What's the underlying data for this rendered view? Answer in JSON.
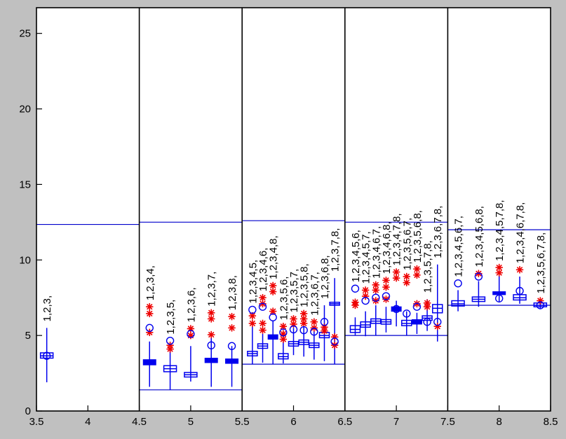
{
  "figure": {
    "background_color": "#c0c0c0",
    "plot_background_color": "#ffffff",
    "axis_color": "#000000",
    "box_color": "#0000ee",
    "bound_line_color": "#0000cc",
    "asterisk_color": "#ee0000",
    "label_color": "#000000"
  },
  "chart_data": {
    "type": "boxplot",
    "title": "",
    "xlabel": "",
    "ylabel": "",
    "xlim": [
      3.5,
      8.5
    ],
    "ylim": [
      0,
      26.7
    ],
    "grid": false,
    "legend": null,
    "xticks": [
      3.5,
      4,
      4.5,
      5,
      5.5,
      6,
      6.5,
      7,
      7.5,
      8,
      8.5
    ],
    "x_tick_labels": [
      "3.5",
      "4",
      "4.5",
      "5",
      "5.5",
      "6",
      "6.5",
      "7",
      "7.5",
      "8",
      "8.5"
    ],
    "yticks": [
      0,
      5,
      10,
      15,
      20,
      25
    ],
    "y_tick_labels": [
      "0",
      "5",
      "10",
      "15",
      "20",
      "25"
    ],
    "section_dividers": [
      4.5,
      5.5,
      6.5,
      7.5
    ],
    "sections": [
      {
        "x_range": [
          3.5,
          4.5
        ],
        "upper_line": 12.35,
        "lower_line": null
      },
      {
        "x_range": [
          4.5,
          5.5
        ],
        "upper_line": 12.5,
        "lower_line": 1.4
      },
      {
        "x_range": [
          5.5,
          6.5
        ],
        "upper_line": 12.6,
        "lower_line": 3.1
      },
      {
        "x_range": [
          6.5,
          7.5
        ],
        "upper_line": 12.5,
        "lower_line": 5.0
      },
      {
        "x_range": [
          7.5,
          8.5
        ],
        "upper_line": 12.0,
        "lower_line": 7.0
      }
    ],
    "boxes": [
      {
        "x": 3.6,
        "label": "1,2,3,",
        "wl": 1.9,
        "q1": 3.5,
        "med": 3.65,
        "q3": 3.85,
        "wh": 5.5,
        "filled": false,
        "circle": 3.65,
        "ast": []
      },
      {
        "x": 4.6,
        "label": "1,2,3,4,",
        "wl": 1.6,
        "q1": 3.05,
        "med": 3.2,
        "q3": 3.4,
        "wh": 4.6,
        "filled": true,
        "circle": 5.5,
        "ast": [
          6.9,
          6.45,
          5.2
        ]
      },
      {
        "x": 4.8,
        "label": "1,2,3,5,",
        "wl": 1.4,
        "q1": 2.6,
        "med": 2.8,
        "q3": 3.0,
        "wh": 4.0,
        "filled": false,
        "circle": 4.65,
        "ast": [
          4.35,
          4.1
        ]
      },
      {
        "x": 5.0,
        "label": "1,2,3,6,",
        "wl": 1.95,
        "q1": 2.25,
        "med": 2.4,
        "q3": 2.55,
        "wh": 4.3,
        "filled": false,
        "circle": 5.1,
        "ast": [
          5.45,
          5.0
        ]
      },
      {
        "x": 5.2,
        "label": "1,2,3,7,",
        "wl": 1.6,
        "q1": 3.2,
        "med": 3.35,
        "q3": 3.5,
        "wh": 5.0,
        "filled": true,
        "circle": 4.35,
        "ast": [
          6.5,
          6.1,
          5.05
        ]
      },
      {
        "x": 5.4,
        "label": "1,2,3,8,",
        "wl": 1.6,
        "q1": 3.15,
        "med": 3.3,
        "q3": 3.45,
        "wh": 4.3,
        "filled": true,
        "circle": 4.3,
        "ast": [
          6.25,
          5.5
        ]
      },
      {
        "x": 5.6,
        "label": "1,2,3,4,5,",
        "wl": 3.1,
        "q1": 3.65,
        "med": 3.8,
        "q3": 3.95,
        "wh": 5.6,
        "filled": false,
        "circle": 6.7,
        "ast": [
          6.3,
          5.8
        ]
      },
      {
        "x": 5.7,
        "label": "1,2,3,4,6,",
        "wl": 3.2,
        "q1": 4.15,
        "med": 4.3,
        "q3": 4.45,
        "wh": 5.1,
        "filled": false,
        "circle": 6.9,
        "ast": [
          7.5,
          7.1,
          5.8,
          5.35
        ]
      },
      {
        "x": 5.8,
        "label": "1,2,3,4,8,",
        "wl": 3.1,
        "q1": 4.75,
        "med": 4.9,
        "q3": 5.05,
        "wh": 6.0,
        "filled": true,
        "circle": 6.2,
        "ast": [
          8.3,
          7.9,
          6.6
        ]
      },
      {
        "x": 5.9,
        "label": "1,2,3,5,6,",
        "wl": 3.15,
        "q1": 3.45,
        "med": 3.6,
        "q3": 3.8,
        "wh": 5.3,
        "filled": false,
        "circle": 5.2,
        "ast": [
          5.6,
          5.1,
          4.75
        ]
      },
      {
        "x": 6.0,
        "label": "1,2,3,5,7,",
        "wl": 3.7,
        "q1": 4.3,
        "med": 4.45,
        "q3": 4.6,
        "wh": 5.5,
        "filled": false,
        "circle": 5.4,
        "ast": [
          6.1,
          5.75
        ]
      },
      {
        "x": 6.1,
        "label": "1,2,3,5,8,",
        "wl": 3.6,
        "q1": 4.4,
        "med": 4.55,
        "q3": 4.7,
        "wh": 5.6,
        "filled": false,
        "circle": 5.35,
        "ast": [
          6.45,
          6.1,
          5.8
        ]
      },
      {
        "x": 6.2,
        "label": "1,2,3,6,7,",
        "wl": 3.4,
        "q1": 4.2,
        "med": 4.35,
        "q3": 4.5,
        "wh": 5.3,
        "filled": false,
        "circle": 5.25,
        "ast": [
          5.9,
          5.5
        ]
      },
      {
        "x": 6.3,
        "label": "1,2,3,6,8,",
        "wl": 3.3,
        "q1": 4.85,
        "med": 5.0,
        "q3": 5.2,
        "wh": 7.0,
        "filled": false,
        "circle": 5.9,
        "ast": [
          5.55,
          5.3
        ]
      },
      {
        "x": 6.4,
        "label": "1,2,3,7,8,",
        "wl": 3.1,
        "q1": 7.0,
        "med": 7.1,
        "q3": 7.2,
        "wh": 8.8,
        "filled": false,
        "circle": 4.6,
        "ast": [
          4.9,
          4.35
        ]
      },
      {
        "x": 6.6,
        "label": "1,2,3,4,5,6,",
        "wl": 5.0,
        "q1": 5.2,
        "med": 5.4,
        "q3": 5.65,
        "wh": 6.2,
        "filled": false,
        "circle": 8.1,
        "ast": [
          7.2,
          7.0
        ]
      },
      {
        "x": 6.7,
        "label": "1,2,3,4,5,7,",
        "wl": 4.95,
        "q1": 5.55,
        "med": 5.7,
        "q3": 5.9,
        "wh": 6.6,
        "filled": false,
        "circle": 7.3,
        "ast": [
          8.0,
          7.6
        ]
      },
      {
        "x": 6.8,
        "label": "1,2,3,4,6,7,",
        "wl": 5.0,
        "q1": 5.8,
        "med": 5.95,
        "q3": 6.1,
        "wh": 7.0,
        "filled": false,
        "circle": 7.5,
        "ast": [
          8.35,
          8.0,
          7.3
        ]
      },
      {
        "x": 6.9,
        "label": "1,2,3,4,6,8,",
        "wl": 5.2,
        "q1": 5.75,
        "med": 5.9,
        "q3": 6.05,
        "wh": 6.9,
        "filled": false,
        "circle": 7.6,
        "ast": [
          8.65,
          8.2,
          7.4
        ]
      },
      {
        "x": 7.0,
        "label": "1,2,3,4,7,8,",
        "wl": 5.6,
        "q1": 6.6,
        "med": 6.75,
        "q3": 6.9,
        "wh": 7.3,
        "filled": true,
        "circle": 6.75,
        "ast": [
          9.2,
          8.8
        ]
      },
      {
        "x": 7.1,
        "label": "1,2,3,5,6,7,",
        "wl": 5.0,
        "q1": 5.65,
        "med": 5.8,
        "q3": 6.0,
        "wh": 6.6,
        "filled": false,
        "circle": 6.45,
        "ast": [
          8.9,
          8.5
        ]
      },
      {
        "x": 7.2,
        "label": "1,2,3,5,6,8,",
        "wl": 5.1,
        "q1": 5.75,
        "med": 5.9,
        "q3": 6.05,
        "wh": 6.5,
        "filled": true,
        "circle": 6.9,
        "ast": [
          9.4,
          9.0,
          7.1
        ]
      },
      {
        "x": 7.3,
        "label": "1,2,3,5,7,8,",
        "wl": 5.3,
        "q1": 6.0,
        "med": 6.15,
        "q3": 6.3,
        "wh": 7.4,
        "filled": false,
        "circle": 5.9,
        "ast": [
          7.15,
          6.9
        ]
      },
      {
        "x": 7.4,
        "label": "1,2,3,6,7,8,",
        "wl": 4.6,
        "q1": 6.5,
        "med": 6.8,
        "q3": 7.05,
        "wh": 9.7,
        "filled": false,
        "circle": 5.9,
        "ast": [
          5.6
        ]
      },
      {
        "x": 7.6,
        "label": "1,2,3,4,5,6,7,",
        "wl": 6.6,
        "q1": 6.95,
        "med": 7.1,
        "q3": 7.3,
        "wh": 8.0,
        "filled": false,
        "circle": 8.45,
        "ast": []
      },
      {
        "x": 7.8,
        "label": "1,2,3,4,5,6,8,",
        "wl": 6.9,
        "q1": 7.25,
        "med": 7.4,
        "q3": 7.55,
        "wh": 8.6,
        "filled": false,
        "circle": 8.9,
        "ast": [
          9.1
        ]
      },
      {
        "x": 8.0,
        "label": "1,2,3,4,5,7,8,",
        "wl": 7.2,
        "q1": 7.7,
        "med": 7.8,
        "q3": 7.9,
        "wh": 9.2,
        "filled": true,
        "circle": 7.45,
        "ast": [
          9.5,
          9.15
        ]
      },
      {
        "x": 8.2,
        "label": "1,2,3,4,6,7,8,",
        "wl": 7.1,
        "q1": 7.35,
        "med": 7.5,
        "q3": 7.7,
        "wh": 8.9,
        "filled": false,
        "circle": 7.95,
        "ast": [
          9.35
        ]
      },
      {
        "x": 8.4,
        "label": "1,2,3,5,6,7,8,",
        "wl": 6.8,
        "q1": 6.9,
        "med": 7.0,
        "q3": 7.15,
        "wh": 7.35,
        "filled": false,
        "circle": 7.0,
        "ast": [
          7.3
        ]
      }
    ]
  }
}
